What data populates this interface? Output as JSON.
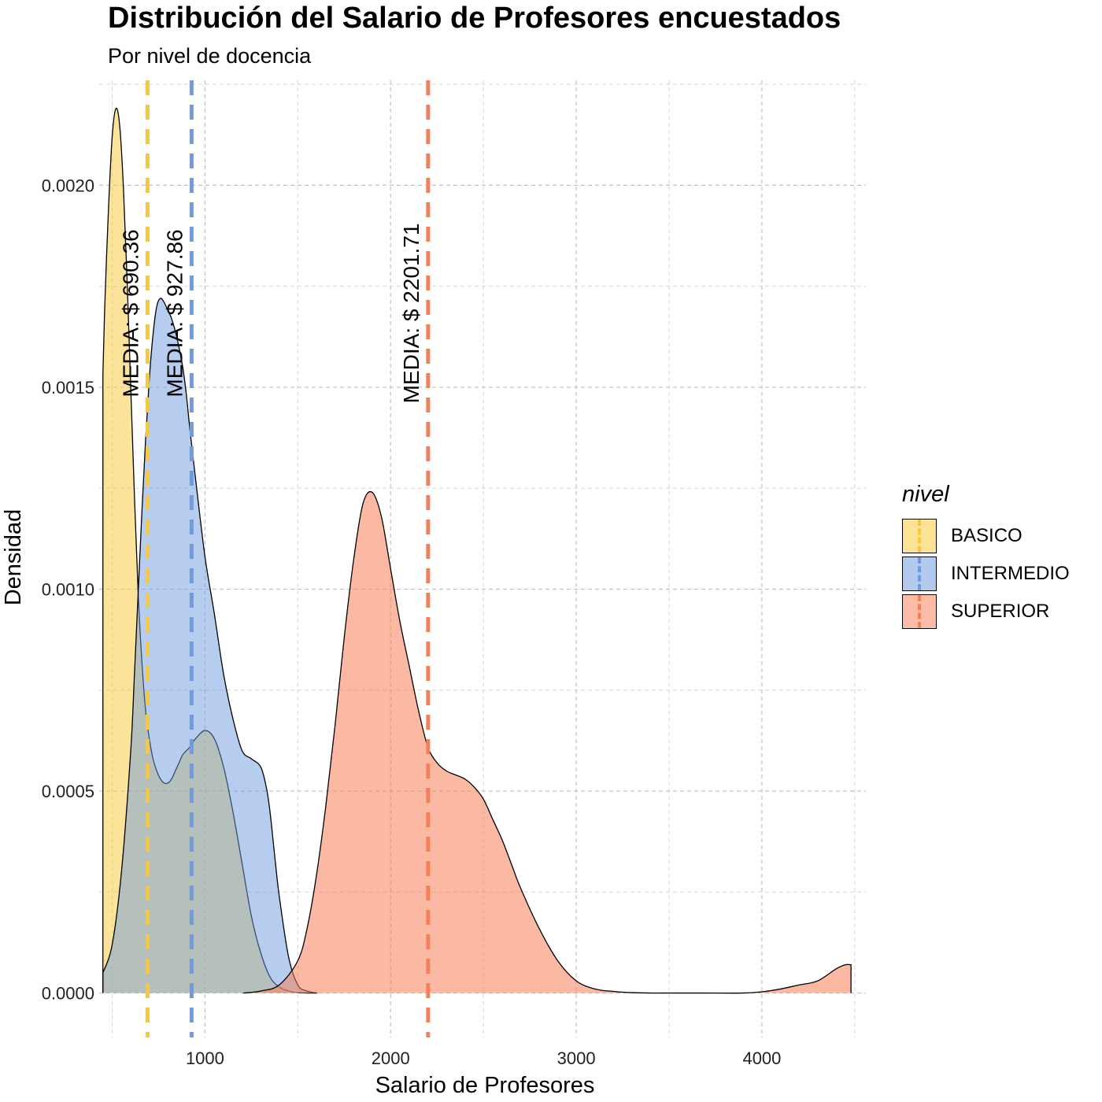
{
  "title": "Distribución del Salario de Profesores encuestados",
  "subtitle": "Por nivel de docencia",
  "chart_data": {
    "type": "area",
    "title": "Distribución del Salario de Profesores encuestados",
    "subtitle": "Por nivel de docencia",
    "xlabel": "Salario de Profesores",
    "ylabel": "Densidad",
    "xlim": [
      430,
      4560
    ],
    "ylim": [
      -0.00011,
      0.00226
    ],
    "x_ticks": [
      1000,
      2000,
      3000,
      4000
    ],
    "y_ticks": [
      0.0,
      0.0005,
      0.001,
      0.0015,
      0.002
    ],
    "y_tick_labels": [
      "0.0000",
      "0.0005",
      "0.0010",
      "0.0015",
      "0.0020"
    ],
    "grid": true,
    "legend_title": "nivel",
    "legend_position": "right",
    "series": [
      {
        "name": "BASICO",
        "color": "#F7C936",
        "fill_opacity": 0.5,
        "x": [
          450,
          460,
          480,
          500,
          520,
          540,
          560,
          580,
          600,
          620,
          640,
          660,
          680,
          700,
          720,
          740,
          760,
          780,
          800,
          820,
          840,
          860,
          880,
          900,
          920,
          950,
          1000,
          1050,
          1100,
          1150,
          1200,
          1250,
          1300,
          1350,
          1400,
          1450,
          1500,
          1550,
          1600
        ],
        "y": [
          0.00153,
          0.0017,
          0.00194,
          0.00212,
          0.00219,
          0.00215,
          0.002,
          0.00177,
          0.0015,
          0.00123,
          0.00099,
          0.00082,
          0.0007,
          0.00063,
          0.00058,
          0.00055,
          0.00053,
          0.00052,
          0.00052,
          0.00053,
          0.00055,
          0.00057,
          0.00059,
          0.0006,
          0.00061,
          0.00063,
          0.00065,
          0.00063,
          0.00056,
          0.00045,
          0.00032,
          0.00019,
          0.0001,
          4e-05,
          1.5e-05,
          5e-06,
          1e-06,
          0.0,
          0.0
        ]
      },
      {
        "name": "INTERMEDIO",
        "color": "#6F9BE0",
        "fill_opacity": 0.5,
        "x": [
          450,
          500,
          550,
          600,
          620,
          640,
          660,
          680,
          700,
          720,
          740,
          760,
          780,
          800,
          820,
          850,
          880,
          900,
          920,
          950,
          1000,
          1050,
          1100,
          1150,
          1200,
          1250,
          1300,
          1330,
          1350,
          1380,
          1400,
          1450,
          1500,
          1550,
          1600
        ],
        "y": [
          5e-05,
          0.00012,
          0.0003,
          0.0006,
          0.00079,
          0.00099,
          0.00119,
          0.00137,
          0.00152,
          0.00163,
          0.0017,
          0.00172,
          0.00171,
          0.00169,
          0.00167,
          0.00162,
          0.00155,
          0.00148,
          0.00139,
          0.00127,
          0.00108,
          0.00094,
          0.00079,
          0.00068,
          0.0006,
          0.00058,
          0.00056,
          0.00051,
          0.00045,
          0.00032,
          0.00024,
          9e-05,
          2e-05,
          5e-06,
          0.0
        ]
      },
      {
        "name": "SUPERIOR",
        "color": "#F77F58",
        "fill_opacity": 0.55,
        "x": [
          1210,
          1300,
          1400,
          1500,
          1550,
          1600,
          1650,
          1700,
          1750,
          1800,
          1850,
          1900,
          1950,
          2000,
          2050,
          2100,
          2150,
          2200,
          2250,
          2300,
          2350,
          2400,
          2450,
          2500,
          2550,
          2600,
          2650,
          2700,
          2800,
          2900,
          3000,
          3100,
          3200,
          3300,
          3400,
          3500,
          3700,
          3900,
          4000,
          4100,
          4200,
          4300,
          4400,
          4450,
          4480
        ],
        "y": [
          0.0,
          5e-06,
          2e-05,
          8e-05,
          0.00016,
          0.00029,
          0.00046,
          0.00066,
          0.00088,
          0.00107,
          0.00121,
          0.00124,
          0.00118,
          0.00105,
          0.00092,
          0.00081,
          0.0007,
          0.00061,
          0.00057,
          0.00055,
          0.00054,
          0.00053,
          0.00051,
          0.00048,
          0.00043,
          0.00038,
          0.00032,
          0.00026,
          0.00016,
          8e-05,
          3e-05,
          1e-05,
          4e-06,
          1e-06,
          0.0,
          0.0,
          0.0,
          0.0,
          3e-06,
          1e-05,
          2e-05,
          3e-05,
          6e-05,
          7e-05,
          7e-05
        ]
      }
    ],
    "mean_lines": [
      {
        "series": "BASICO",
        "x": 690.36,
        "label": "MEDIA: $ 690.36",
        "color": "#F7C936"
      },
      {
        "series": "INTERMEDIO",
        "x": 927.86,
        "label": "MEDIA: $ 927.86",
        "color": "#6F9BE0"
      },
      {
        "series": "SUPERIOR",
        "x": 2201.71,
        "label": "MEDIA: $ 2201.71",
        "color": "#F77F58"
      }
    ]
  }
}
